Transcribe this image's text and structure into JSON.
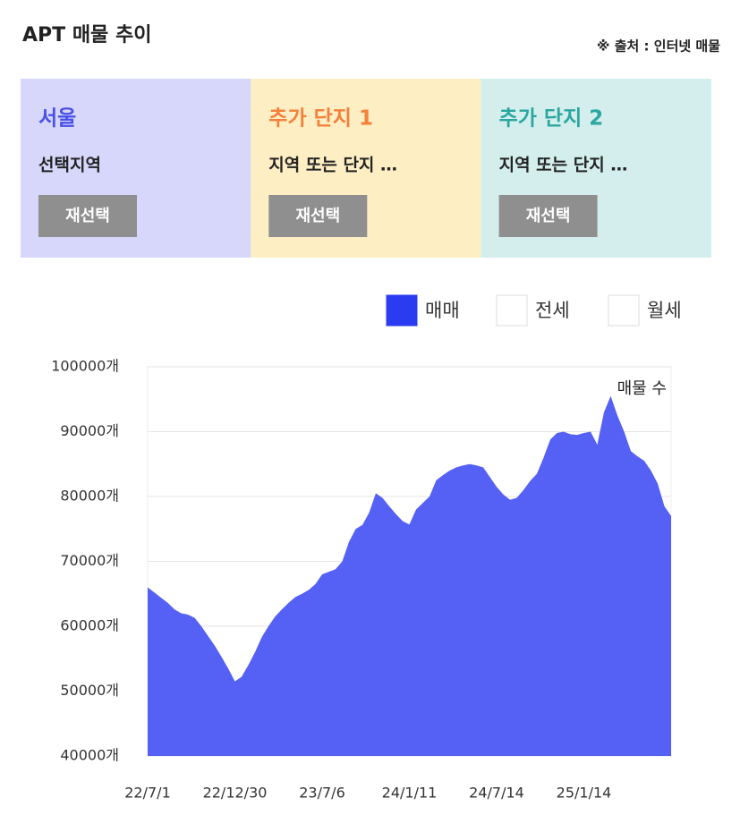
{
  "header": {
    "title": "APT 매물 추이",
    "source": "※ 출처 : 인터넷 매물"
  },
  "cards": [
    {
      "title": "서울",
      "subtitle": "선택지역",
      "button": "재선택",
      "color": "#d6d7fb",
      "title_color": "#4a50e8"
    },
    {
      "title": "추가 단지 1",
      "subtitle": "지역 또는 단지 …",
      "button": "재선택",
      "color": "#fdeec4",
      "title_color": "#f5803a"
    },
    {
      "title": "추가 단지 2",
      "subtitle": "지역 또는 단지 …",
      "button": "재선택",
      "color": "#d4eeee",
      "title_color": "#2aa7a0"
    }
  ],
  "legend_options": [
    {
      "label": "전세",
      "selected": false
    },
    {
      "label": "월세",
      "selected": false
    }
  ],
  "chart_data": {
    "type": "area",
    "annotation": "매물 수",
    "categories": [
      "22/7/1",
      null,
      null,
      null,
      null,
      null,
      null,
      null,
      null,
      null,
      null,
      null,
      null,
      "22/12/30",
      null,
      null,
      null,
      null,
      null,
      null,
      null,
      null,
      null,
      null,
      null,
      null,
      "23/7/6",
      null,
      null,
      null,
      null,
      null,
      null,
      null,
      null,
      null,
      null,
      null,
      null,
      "24/1/11",
      null,
      null,
      null,
      null,
      null,
      null,
      null,
      null,
      null,
      null,
      null,
      null,
      "24/7/14",
      null,
      null,
      null,
      null,
      null,
      null,
      null,
      null,
      null,
      null,
      null,
      null,
      "25/1/14",
      null,
      null,
      null,
      null,
      null,
      null,
      null,
      null,
      null,
      null,
      null,
      null,
      null
    ],
    "series": [
      {
        "name": "매매",
        "color": "#5560f5",
        "legend_color": "#2b3cf0",
        "selected": true,
        "values": [
          66000,
          65200,
          64400,
          63600,
          62600,
          62000,
          61800,
          61300,
          60000,
          58500,
          57000,
          55300,
          53500,
          51500,
          52200,
          54000,
          56000,
          58300,
          60000,
          61500,
          62600,
          63600,
          64500,
          65000,
          65600,
          66500,
          68000,
          68400,
          68800,
          70000,
          73000,
          75000,
          75600,
          77500,
          80500,
          79800,
          78500,
          77300,
          76200,
          75700,
          78000,
          79000,
          80000,
          82500,
          83300,
          84000,
          84500,
          84800,
          85000,
          84800,
          84500,
          83000,
          81500,
          80300,
          79500,
          79800,
          81000,
          82400,
          83500,
          86000,
          88800,
          89800,
          90000,
          89600,
          89500,
          89800,
          90000,
          88000,
          93000,
          95500,
          92500,
          90000,
          87000,
          86200,
          85500,
          84000,
          82000,
          78500,
          77000
        ]
      }
    ],
    "ylim": [
      40000,
      100000
    ],
    "yticks": [
      {
        "value": 40000,
        "label": "40000개"
      },
      {
        "value": 50000,
        "label": "50000개"
      },
      {
        "value": 60000,
        "label": "60000개"
      },
      {
        "value": 70000,
        "label": "70000개"
      },
      {
        "value": 80000,
        "label": "80000개"
      },
      {
        "value": 90000,
        "label": "90000개"
      },
      {
        "value": 100000,
        "label": "100000개"
      }
    ],
    "grid": true
  }
}
